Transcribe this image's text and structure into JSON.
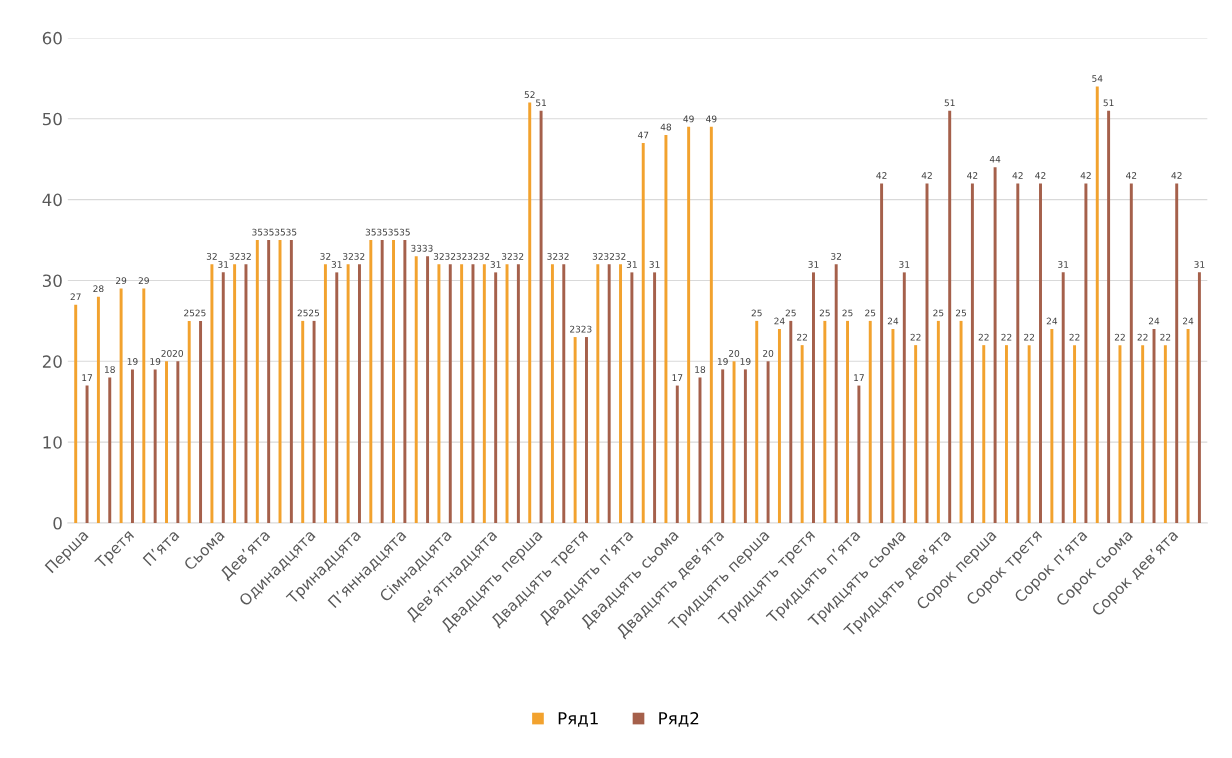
{
  "chart_data": {
    "type": "bar",
    "categories": [
      "Перша",
      null,
      "Третя",
      null,
      "П’ята",
      null,
      "Сьома",
      null,
      "Дев’ята",
      null,
      "Одинадцята",
      null,
      "Тринадцята",
      null,
      "П’яннадцята",
      null,
      "Сімнадцята",
      null,
      "Дев’ятнадцята",
      null,
      "Двадцять перша",
      null,
      "Двадцять третя",
      null,
      "Двадцять п’ята",
      null,
      "Двадцять сьома",
      null,
      "Двадцять дев’ята",
      null,
      "Тридцять перша",
      null,
      "Тридцять третя",
      null,
      "Тридцять п’ята",
      null,
      "Тридцять сьома",
      null,
      "Тридцять дев’ята",
      null,
      "Сорок перша",
      null,
      "Сорок третя",
      null,
      "Сорок п’ята",
      null,
      "Сорок сьома",
      null,
      "Сорок дев’ята",
      null
    ],
    "series": [
      {
        "name": "Ряд1",
        "color": "#f2a22e",
        "values": [
          27,
          28,
          29,
          29,
          20,
          25,
          32,
          32,
          35,
          35,
          25,
          32,
          32,
          35,
          35,
          33,
          32,
          32,
          32,
          32,
          52,
          32,
          23,
          32,
          32,
          47,
          48,
          49,
          49,
          20,
          25,
          24,
          22,
          25,
          25,
          25,
          24,
          22,
          25,
          25,
          22,
          22,
          22,
          24,
          22,
          54,
          22,
          22,
          22,
          24
        ]
      },
      {
        "name": "Ряд2",
        "color": "#a5604b",
        "values": [
          17,
          18,
          19,
          19,
          20,
          25,
          31,
          32,
          35,
          35,
          25,
          31,
          32,
          35,
          35,
          33,
          32,
          32,
          31,
          32,
          51,
          32,
          23,
          32,
          31,
          31,
          17,
          18,
          19,
          19,
          20,
          25,
          31,
          32,
          17,
          42,
          31,
          42,
          51,
          42,
          44,
          42,
          42,
          31,
          42,
          51,
          42,
          24,
          42,
          31
        ]
      }
    ],
    "ylim": [
      0,
      60
    ],
    "yticks": [
      0,
      10,
      20,
      30,
      40,
      50,
      60
    ],
    "grid": "y",
    "legend": "bottom",
    "data_labels": true
  }
}
